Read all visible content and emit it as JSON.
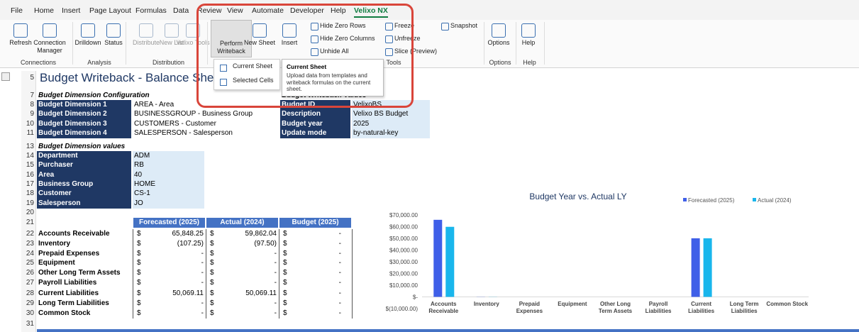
{
  "menu": {
    "tabs": [
      "File",
      "Home",
      "Insert",
      "Page Layout",
      "Formulas",
      "Data",
      "Review",
      "View",
      "Automate",
      "Developer",
      "Help",
      "Velixo NX"
    ],
    "active": 11
  },
  "ribbon": {
    "buttons": [
      "Refresh",
      "Connection Manager",
      "Drilldown",
      "Status",
      "Distribute",
      "New List",
      "Velixo Tools",
      "Perform Writeback",
      "New Sheet",
      "Insert",
      "Options",
      "Help"
    ],
    "small_buttons": [
      "Hide Zero Rows",
      "Hide Zero Columns",
      "Unhide All",
      "Freeze",
      "Unfreeze",
      "Slice (Preview)",
      "Snapshot"
    ],
    "groups": [
      "Connections",
      "Analysis",
      "Distribution",
      "Tools",
      "Options",
      "Help"
    ]
  },
  "dropdown": {
    "items": [
      "Current Sheet",
      "Selected Cells"
    ]
  },
  "tooltip": {
    "title": "Current Sheet",
    "text": "Upload data from templates and writeback formulas on the current sheet."
  },
  "sheet": {
    "row_numbers": [
      5,
      7,
      8,
      9,
      10,
      11,
      13,
      14,
      15,
      16,
      17,
      18,
      19,
      20,
      21,
      22,
      23,
      24,
      25,
      26,
      27,
      28,
      29,
      30,
      31
    ],
    "title": "Budget Writeback - Balance Sheet",
    "config": {
      "heading": "Budget Dimension Configuration",
      "rows": [
        [
          "Budget Dimension 1",
          "AREA - Area"
        ],
        [
          "Budget Dimension 2",
          "BUSINESSGROUP - Business Group"
        ],
        [
          "Budget Dimension 3",
          "CUSTOMERS - Customer"
        ],
        [
          "Budget Dimension 4",
          "SALESPERSON - Salesperson"
        ]
      ]
    },
    "writeback": {
      "heading": "Budget Writeback Values",
      "rows": [
        [
          "Budget ID",
          "VelixoBS"
        ],
        [
          "Description",
          "Velixo BS Budget"
        ],
        [
          "Budget year",
          "2025"
        ],
        [
          "Update mode",
          "by-natural-key"
        ]
      ]
    },
    "dimension_values": {
      "heading": "Budget Dimension values",
      "rows": [
        [
          "Department",
          "ADM"
        ],
        [
          "Purchaser",
          "RB"
        ],
        [
          "Area",
          "40"
        ],
        [
          "Business Group",
          "HOME"
        ],
        [
          "Customer",
          "CS-1"
        ],
        [
          "Salesperson",
          "JO"
        ]
      ]
    },
    "balance": {
      "currency": "$",
      "headers": [
        "Forecasted (2025)",
        "Actual (2024)",
        "Budget (2025)"
      ],
      "rows": [
        [
          "Accounts Receivable",
          "65,848.25",
          "59,862.04",
          "-"
        ],
        [
          "Inventory",
          "(107.25)",
          "(97.50)",
          "-"
        ],
        [
          "Prepaid Expenses",
          "-",
          "-",
          "-"
        ],
        [
          "Equipment",
          "-",
          "-",
          "-"
        ],
        [
          "Other Long Term Assets",
          "-",
          "-",
          "-"
        ],
        [
          "Payroll Liabilities",
          "-",
          "-",
          "-"
        ],
        [
          "Current Liabilities",
          "50,069.11",
          "50,069.11",
          "-"
        ],
        [
          "Long Term Liabilities",
          "-",
          "-",
          "-"
        ],
        [
          "Common Stock",
          "-",
          "-",
          "-"
        ]
      ]
    }
  },
  "chart": {
    "type": "bar",
    "title": "Budget Year vs. Actual LY",
    "categories": [
      "Accounts Receivable",
      "Inventory",
      "Prepaid Expenses",
      "Equipment",
      "Other Long Term Assets",
      "Payroll Liabilities",
      "Current Liabilities",
      "Long Term Liabilities",
      "Common Stock"
    ],
    "series": [
      {
        "name": "Forecasted (2025)",
        "color": "#3f5fe8",
        "values": [
          65848.25,
          -107.25,
          0,
          0,
          0,
          0,
          50069.11,
          0,
          0
        ]
      },
      {
        "name": "Actual (2024)",
        "color": "#19b6ec",
        "values": [
          59862.04,
          -97.5,
          0,
          0,
          0,
          0,
          50069.11,
          0,
          0
        ]
      }
    ],
    "ylim": [
      -10000,
      70000
    ],
    "yticks": [
      {
        "value": -10000,
        "label": "$(10,000.00)"
      },
      {
        "value": 0,
        "label": "$-"
      },
      {
        "value": 10000,
        "label": "$10,000.00"
      },
      {
        "value": 20000,
        "label": "$20,000.00"
      },
      {
        "value": 30000,
        "label": "$30,000.00"
      },
      {
        "value": 40000,
        "label": "$40,000.00"
      },
      {
        "value": 50000,
        "label": "$50,000.00"
      },
      {
        "value": 60000,
        "label": "$60,000.00"
      },
      {
        "value": 70000,
        "label": "$70,000.00"
      }
    ],
    "legend": "top-right"
  }
}
